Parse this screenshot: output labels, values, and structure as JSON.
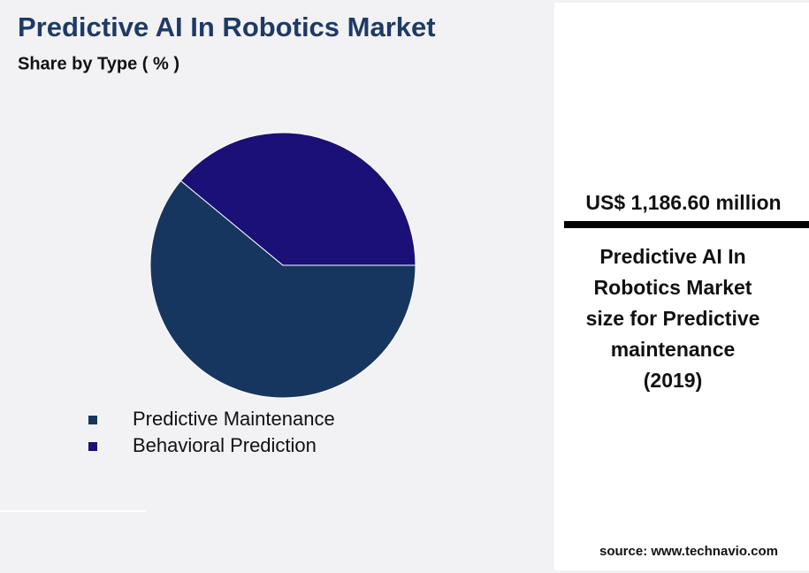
{
  "chart_data": {
    "type": "pie",
    "title": "Predictive AI In Robotics Market",
    "subtitle": "Share by Type ( % )",
    "categories": [
      "Predictive Maintenance",
      "Behavioral Prediction"
    ],
    "values": [
      61,
      39
    ],
    "colors": [
      "#17365f",
      "#1a1077"
    ]
  },
  "highlight": {
    "value": "US$ 1,186.60 million",
    "description": [
      "Predictive AI In",
      "Robotics Market",
      "size for Predictive",
      "maintenance",
      "(2019)"
    ]
  },
  "source": "source: www.technavio.com"
}
